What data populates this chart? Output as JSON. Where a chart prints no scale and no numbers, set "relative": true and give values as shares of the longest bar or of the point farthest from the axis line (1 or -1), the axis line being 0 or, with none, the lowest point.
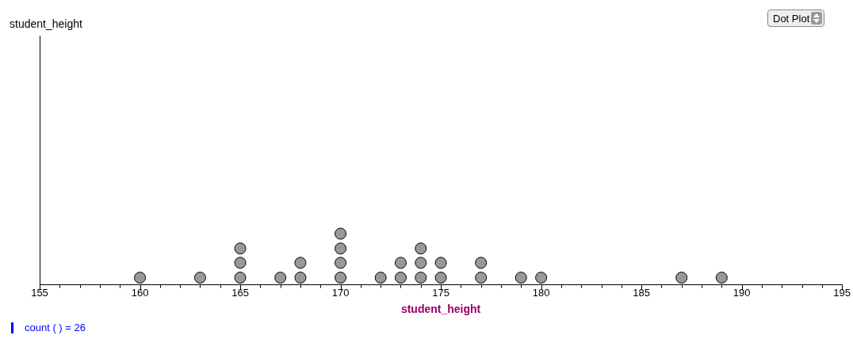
{
  "chart_data": {
    "type": "scatter",
    "xlabel": "student_height",
    "annotations": [
      "count ( ) = 26",
      "Dot Plot",
      "student_height"
    ],
    "x": [
      160,
      163,
      165,
      165,
      165,
      167,
      168,
      168,
      170,
      170,
      170,
      170,
      172,
      173,
      173,
      174,
      174,
      174,
      175,
      175,
      177,
      177,
      179,
      180,
      187,
      189
    ],
    "values": [
      0.14,
      0.14,
      0.14,
      0.43,
      0.71,
      0.14,
      0.14,
      0.43,
      0.14,
      0.43,
      0.71,
      1,
      0.14,
      0.14,
      0.43,
      0.14,
      0.43,
      0.71,
      0.14,
      0.43,
      0.14,
      0.43,
      0.14,
      0.14,
      0.14,
      0.14
    ],
    "color": "#999999",
    "relative": true,
    "marker": "circle",
    "grid": false,
    "legend": false,
    "xlim": [
      155,
      195
    ],
    "xticks": [
      155,
      {
        "value": 156,
        "label": null
      },
      {
        "value": 157,
        "label": null
      },
      {
        "value": 158,
        "label": null
      },
      {
        "value": 159,
        "label": null
      },
      160,
      {
        "value": 161,
        "label": null
      },
      {
        "value": 162,
        "label": null
      },
      {
        "value": 163,
        "label": null
      },
      {
        "value": 164,
        "label": null
      },
      165,
      {
        "value": 166,
        "label": null
      },
      {
        "value": 167,
        "label": null
      },
      {
        "value": 168,
        "label": null
      },
      {
        "value": 169,
        "label": null
      },
      170,
      {
        "value": 171,
        "label": null
      },
      {
        "value": 172,
        "label": null
      },
      {
        "value": 173,
        "label": null
      },
      {
        "value": 174,
        "label": null
      },
      175,
      {
        "value": 176,
        "label": null
      },
      {
        "value": 177,
        "label": null
      },
      {
        "value": 178,
        "label": null
      },
      {
        "value": 179,
        "label": null
      },
      180,
      {
        "value": 181,
        "label": null
      },
      {
        "value": 182,
        "label": null
      },
      {
        "value": 183,
        "label": null
      },
      {
        "value": 184,
        "label": null
      },
      185,
      {
        "value": 186,
        "label": null
      },
      {
        "value": 187,
        "label": null
      },
      {
        "value": 188,
        "label": null
      },
      {
        "value": 189,
        "label": null
      },
      190,
      {
        "value": 191,
        "label": null
      },
      {
        "value": 192,
        "label": null
      },
      {
        "value": 193,
        "label": null
      },
      {
        "value": 194,
        "label": null
      },
      195
    ]
  }
}
